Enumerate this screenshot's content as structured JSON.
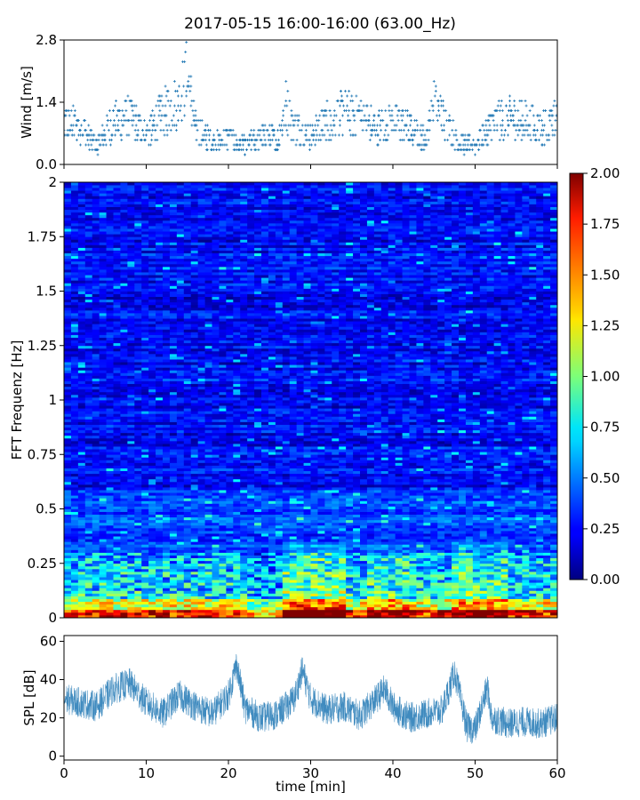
{
  "title": "2017-05-15 16:00-16:00 (63.00_Hz)",
  "chart_data": [
    {
      "type": "scatter",
      "name": "wind",
      "ylabel": "Wind [m/s]",
      "xlim": [
        0,
        60
      ],
      "ylim": [
        0,
        2.8
      ],
      "yticks": [
        "0.0",
        "1.4",
        "2.8"
      ],
      "ytick_values": [
        0,
        1.4,
        2.8
      ],
      "marker": "+",
      "color": "#1f77b4",
      "envelope_x": [
        0,
        2,
        4,
        6,
        8,
        10,
        12,
        14,
        15,
        16,
        18,
        20,
        22,
        24,
        26,
        27,
        28,
        30,
        32,
        34,
        36,
        38,
        40,
        42,
        44,
        45,
        46,
        48,
        50,
        52,
        54,
        56,
        58,
        60
      ],
      "envelope_y": [
        1.2,
        1.0,
        0.5,
        1.2,
        1.3,
        0.8,
        1.4,
        1.7,
        2.4,
        1.0,
        0.6,
        0.7,
        0.5,
        0.8,
        0.7,
        1.6,
        1.0,
        0.8,
        1.2,
        1.4,
        1.3,
        1.0,
        1.2,
        1.0,
        0.7,
        1.6,
        1.3,
        0.6,
        0.5,
        1.1,
        1.3,
        1.2,
        1.0,
        1.2
      ]
    },
    {
      "type": "heatmap",
      "name": "spectrogram",
      "ylabel": "FFT Frequenz [Hz]",
      "xlim": [
        0,
        60
      ],
      "ylim": [
        0,
        2
      ],
      "yticks": [
        "0",
        "0.25",
        "0.5",
        "0.75",
        "1",
        "1.25",
        "1.5",
        "1.75",
        "2"
      ],
      "ytick_values": [
        0,
        0.25,
        0.5,
        0.75,
        1,
        1.25,
        1.5,
        1.75,
        2
      ],
      "colormap": "jet",
      "color_range": [
        0,
        2
      ],
      "colorbar_ticks": [
        "0.00",
        "0.25",
        "0.50",
        "0.75",
        "1.00",
        "1.25",
        "1.50",
        "1.75",
        "2.00"
      ],
      "colorbar_tick_values": [
        0,
        0.25,
        0.5,
        0.75,
        1,
        1.25,
        1.5,
        1.75,
        2
      ],
      "description_levels": {
        "high_freq_mean": 0.25,
        "mid_band_0p1_0p3_mean": 0.6,
        "low_band_below_0p05_mean": 1.5
      }
    },
    {
      "type": "line",
      "name": "spl",
      "ylabel": "SPL [dB]",
      "xlabel": "time [min]",
      "xlim": [
        0,
        60
      ],
      "ylim": [
        -2,
        63
      ],
      "yticks": [
        "0",
        "20",
        "40",
        "60"
      ],
      "ytick_values": [
        0,
        20,
        40,
        60
      ],
      "xticks": [
        "0",
        "10",
        "20",
        "30",
        "40",
        "50",
        "60"
      ],
      "xtick_values": [
        0,
        10,
        20,
        30,
        40,
        50,
        60
      ],
      "color": "#1f77b4",
      "envelope_x": [
        0,
        2,
        4,
        6,
        8,
        10,
        12,
        14,
        16,
        18,
        20,
        21,
        22,
        24,
        26,
        28,
        29,
        30,
        32,
        34,
        36,
        38,
        39,
        40,
        42,
        44,
        46,
        47.5,
        49,
        50,
        51.5,
        52,
        54,
        56,
        58,
        60
      ],
      "envelope_y": [
        30,
        28,
        26,
        35,
        38,
        28,
        22,
        32,
        26,
        22,
        32,
        48,
        25,
        20,
        22,
        30,
        45,
        30,
        24,
        26,
        21,
        30,
        35,
        26,
        20,
        22,
        24,
        44,
        15,
        14,
        36,
        20,
        17,
        18,
        17,
        20
      ]
    }
  ]
}
